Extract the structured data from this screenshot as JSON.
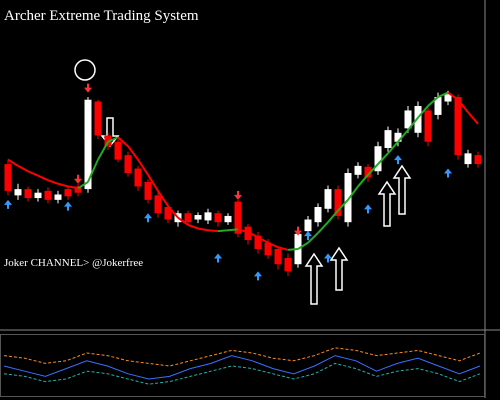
{
  "chart_data": [
    {
      "type": "candlestick",
      "title": "Archer Extreme Trading System",
      "annotation": "Joker CHANNEL> @Jokerfree",
      "ylim": [
        0,
        330
      ],
      "up_color": "#ffffff",
      "down_color": "#ff0000",
      "open": [
        180,
        145,
        152,
        142,
        150,
        140,
        152,
        155,
        152,
        250,
        212,
        205,
        190,
        175,
        160,
        145,
        132,
        115,
        125,
        118,
        117,
        125,
        115,
        138,
        110,
        100,
        92,
        85,
        75,
        68,
        105,
        115,
        130,
        152,
        115,
        168,
        177,
        172,
        198,
        205,
        220,
        215,
        240,
        235,
        250,
        255,
        180,
        190
      ],
      "high": [
        185,
        158,
        155,
        152,
        154,
        150,
        156,
        158,
        255,
        252,
        215,
        208,
        194,
        178,
        163,
        148,
        136,
        128,
        128,
        126,
        130,
        128,
        125,
        140,
        113,
        104,
        96,
        88,
        80,
        106,
        122,
        136,
        156,
        156,
        175,
        182,
        180,
        205,
        222,
        220,
        245,
        250,
        245,
        260,
        262,
        258,
        196,
        194
      ],
      "low": [
        145,
        140,
        138,
        138,
        136,
        136,
        140,
        144,
        148,
        208,
        196,
        182,
        166,
        150,
        136,
        120,
        114,
        110,
        112,
        114,
        113,
        110,
        112,
        98,
        90,
        80,
        74,
        62,
        55,
        64,
        100,
        110,
        126,
        118,
        110,
        164,
        160,
        168,
        194,
        200,
        215,
        210,
        200,
        230,
        246,
        185,
        176,
        176
      ],
      "close": [
        150,
        152,
        142,
        148,
        140,
        146,
        144,
        148,
        252,
        212,
        200,
        185,
        170,
        155,
        140,
        125,
        118,
        125,
        115,
        123,
        126,
        115,
        122,
        102,
        95,
        85,
        78,
        68,
        60,
        102,
        118,
        132,
        152,
        122,
        170,
        178,
        165,
        200,
        218,
        215,
        240,
        245,
        205,
        255,
        258,
        190,
        192,
        180
      ],
      "ma": [
        185,
        178,
        172,
        167,
        162,
        158,
        155,
        153,
        160,
        185,
        205,
        210,
        200,
        185,
        168,
        150,
        133,
        120,
        112,
        108,
        106,
        105,
        106,
        107,
        104,
        98,
        92,
        87,
        84,
        85,
        92,
        103,
        115,
        128,
        140,
        155,
        168,
        180,
        192,
        205,
        218,
        232,
        245,
        255,
        260,
        252,
        238,
        225
      ],
      "ma_up_color": "#22aa22",
      "ma_down_color": "#ff0000",
      "buy_signals": [
        140,
        null,
        null,
        null,
        null,
        null,
        138,
        null,
        null,
        null,
        null,
        null,
        null,
        null,
        125,
        null,
        null,
        null,
        null,
        null,
        null,
        80,
        null,
        null,
        null,
        60,
        null,
        null,
        null,
        null,
        105,
        null,
        80,
        null,
        null,
        null,
        135,
        null,
        null,
        190,
        null,
        null,
        null,
        null,
        175,
        null,
        null,
        null
      ],
      "sell_signals": [
        null,
        null,
        null,
        null,
        null,
        null,
        null,
        158,
        260,
        null,
        null,
        null,
        null,
        null,
        null,
        null,
        null,
        null,
        null,
        null,
        null,
        null,
        null,
        140,
        null,
        null,
        null,
        null,
        null,
        100,
        null,
        null,
        null,
        null,
        null,
        null,
        null,
        null,
        null,
        null,
        null,
        null,
        null,
        null,
        null,
        null,
        null,
        null
      ],
      "buy_color": "#3399ff",
      "sell_color": "#ff3333"
    },
    {
      "type": "line",
      "ylim": [
        0,
        100
      ],
      "series": [
        {
          "color": "#ff8c1a",
          "values": [
            70,
            65,
            55,
            60,
            75,
            70,
            60,
            55,
            50,
            60,
            70,
            80,
            75,
            65,
            60,
            70,
            85,
            80,
            70,
            75,
            80,
            70,
            60,
            75
          ]
        },
        {
          "color": "#3b6fff",
          "values": [
            50,
            40,
            30,
            45,
            60,
            50,
            35,
            25,
            30,
            45,
            55,
            70,
            60,
            45,
            35,
            50,
            70,
            60,
            40,
            55,
            65,
            50,
            35,
            50
          ]
        },
        {
          "color": "#20b2aa",
          "values": [
            35,
            30,
            20,
            25,
            40,
            35,
            25,
            15,
            20,
            30,
            40,
            50,
            45,
            35,
            25,
            35,
            55,
            45,
            30,
            40,
            45,
            35,
            20,
            35
          ]
        }
      ]
    }
  ]
}
